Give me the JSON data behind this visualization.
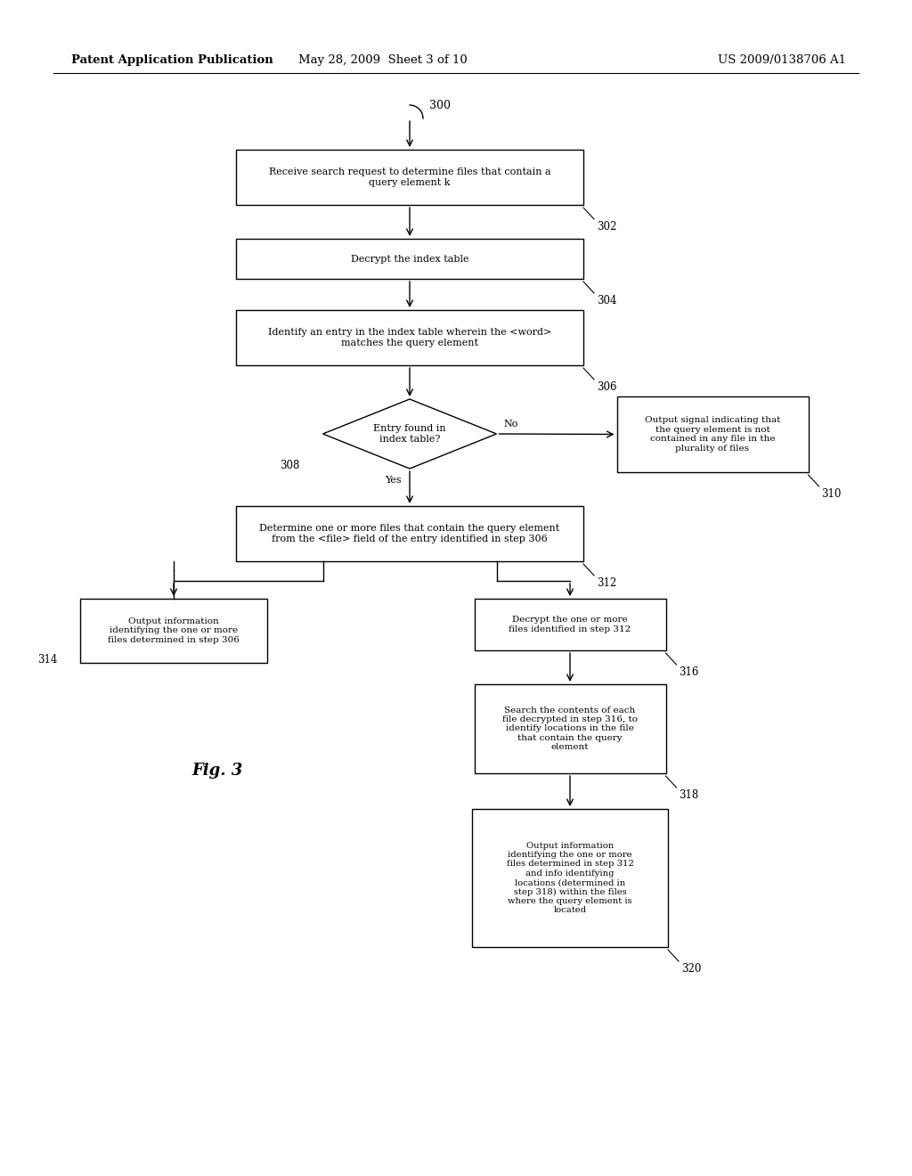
{
  "header_left": "Patent Application Publication",
  "header_mid": "May 28, 2009  Sheet 3 of 10",
  "header_right": "US 2009/0138706 A1",
  "fig_label": "Fig. 3",
  "background_color": "#ffffff",
  "box_facecolor": "#ffffff",
  "box_edgecolor": "#000000",
  "text_color": "#000000",
  "fontsize": 8.0,
  "header_fontsize": 9.5,
  "lw": 1.0
}
